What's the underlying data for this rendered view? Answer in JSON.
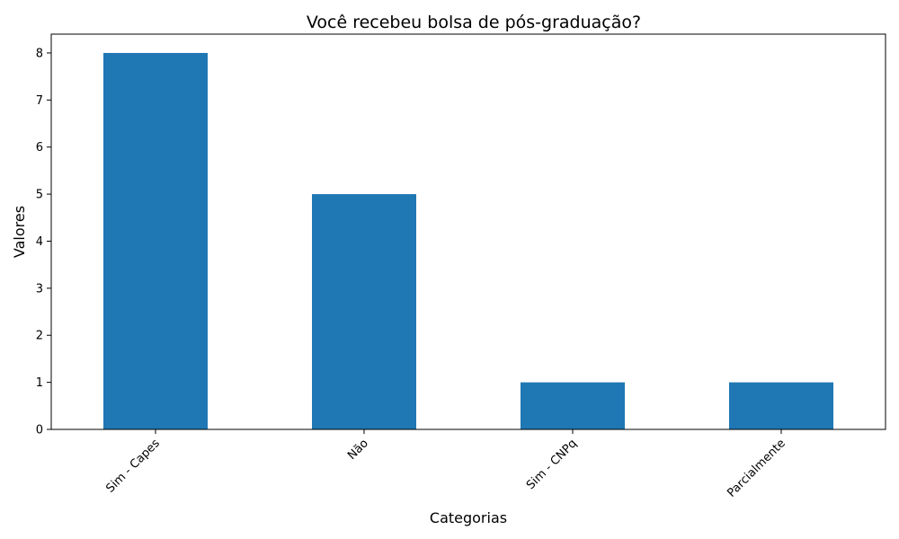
{
  "chart_data": {
    "type": "bar",
    "title": "Você recebeu bolsa de pós-graduação?",
    "xlabel": "Categorias",
    "ylabel": "Valores",
    "categories": [
      "Sim - Capes",
      "Não",
      "Sim - CNPq",
      "Parcialmente"
    ],
    "values": [
      8,
      5,
      1,
      1
    ],
    "ylim": [
      0,
      8.4
    ],
    "yticks": [
      "0",
      "1",
      "2",
      "3",
      "4",
      "5",
      "6",
      "7",
      "8"
    ],
    "grid": false,
    "legend": "none",
    "bar_color": "#1f77b4",
    "x_tick_rotation": 45
  }
}
